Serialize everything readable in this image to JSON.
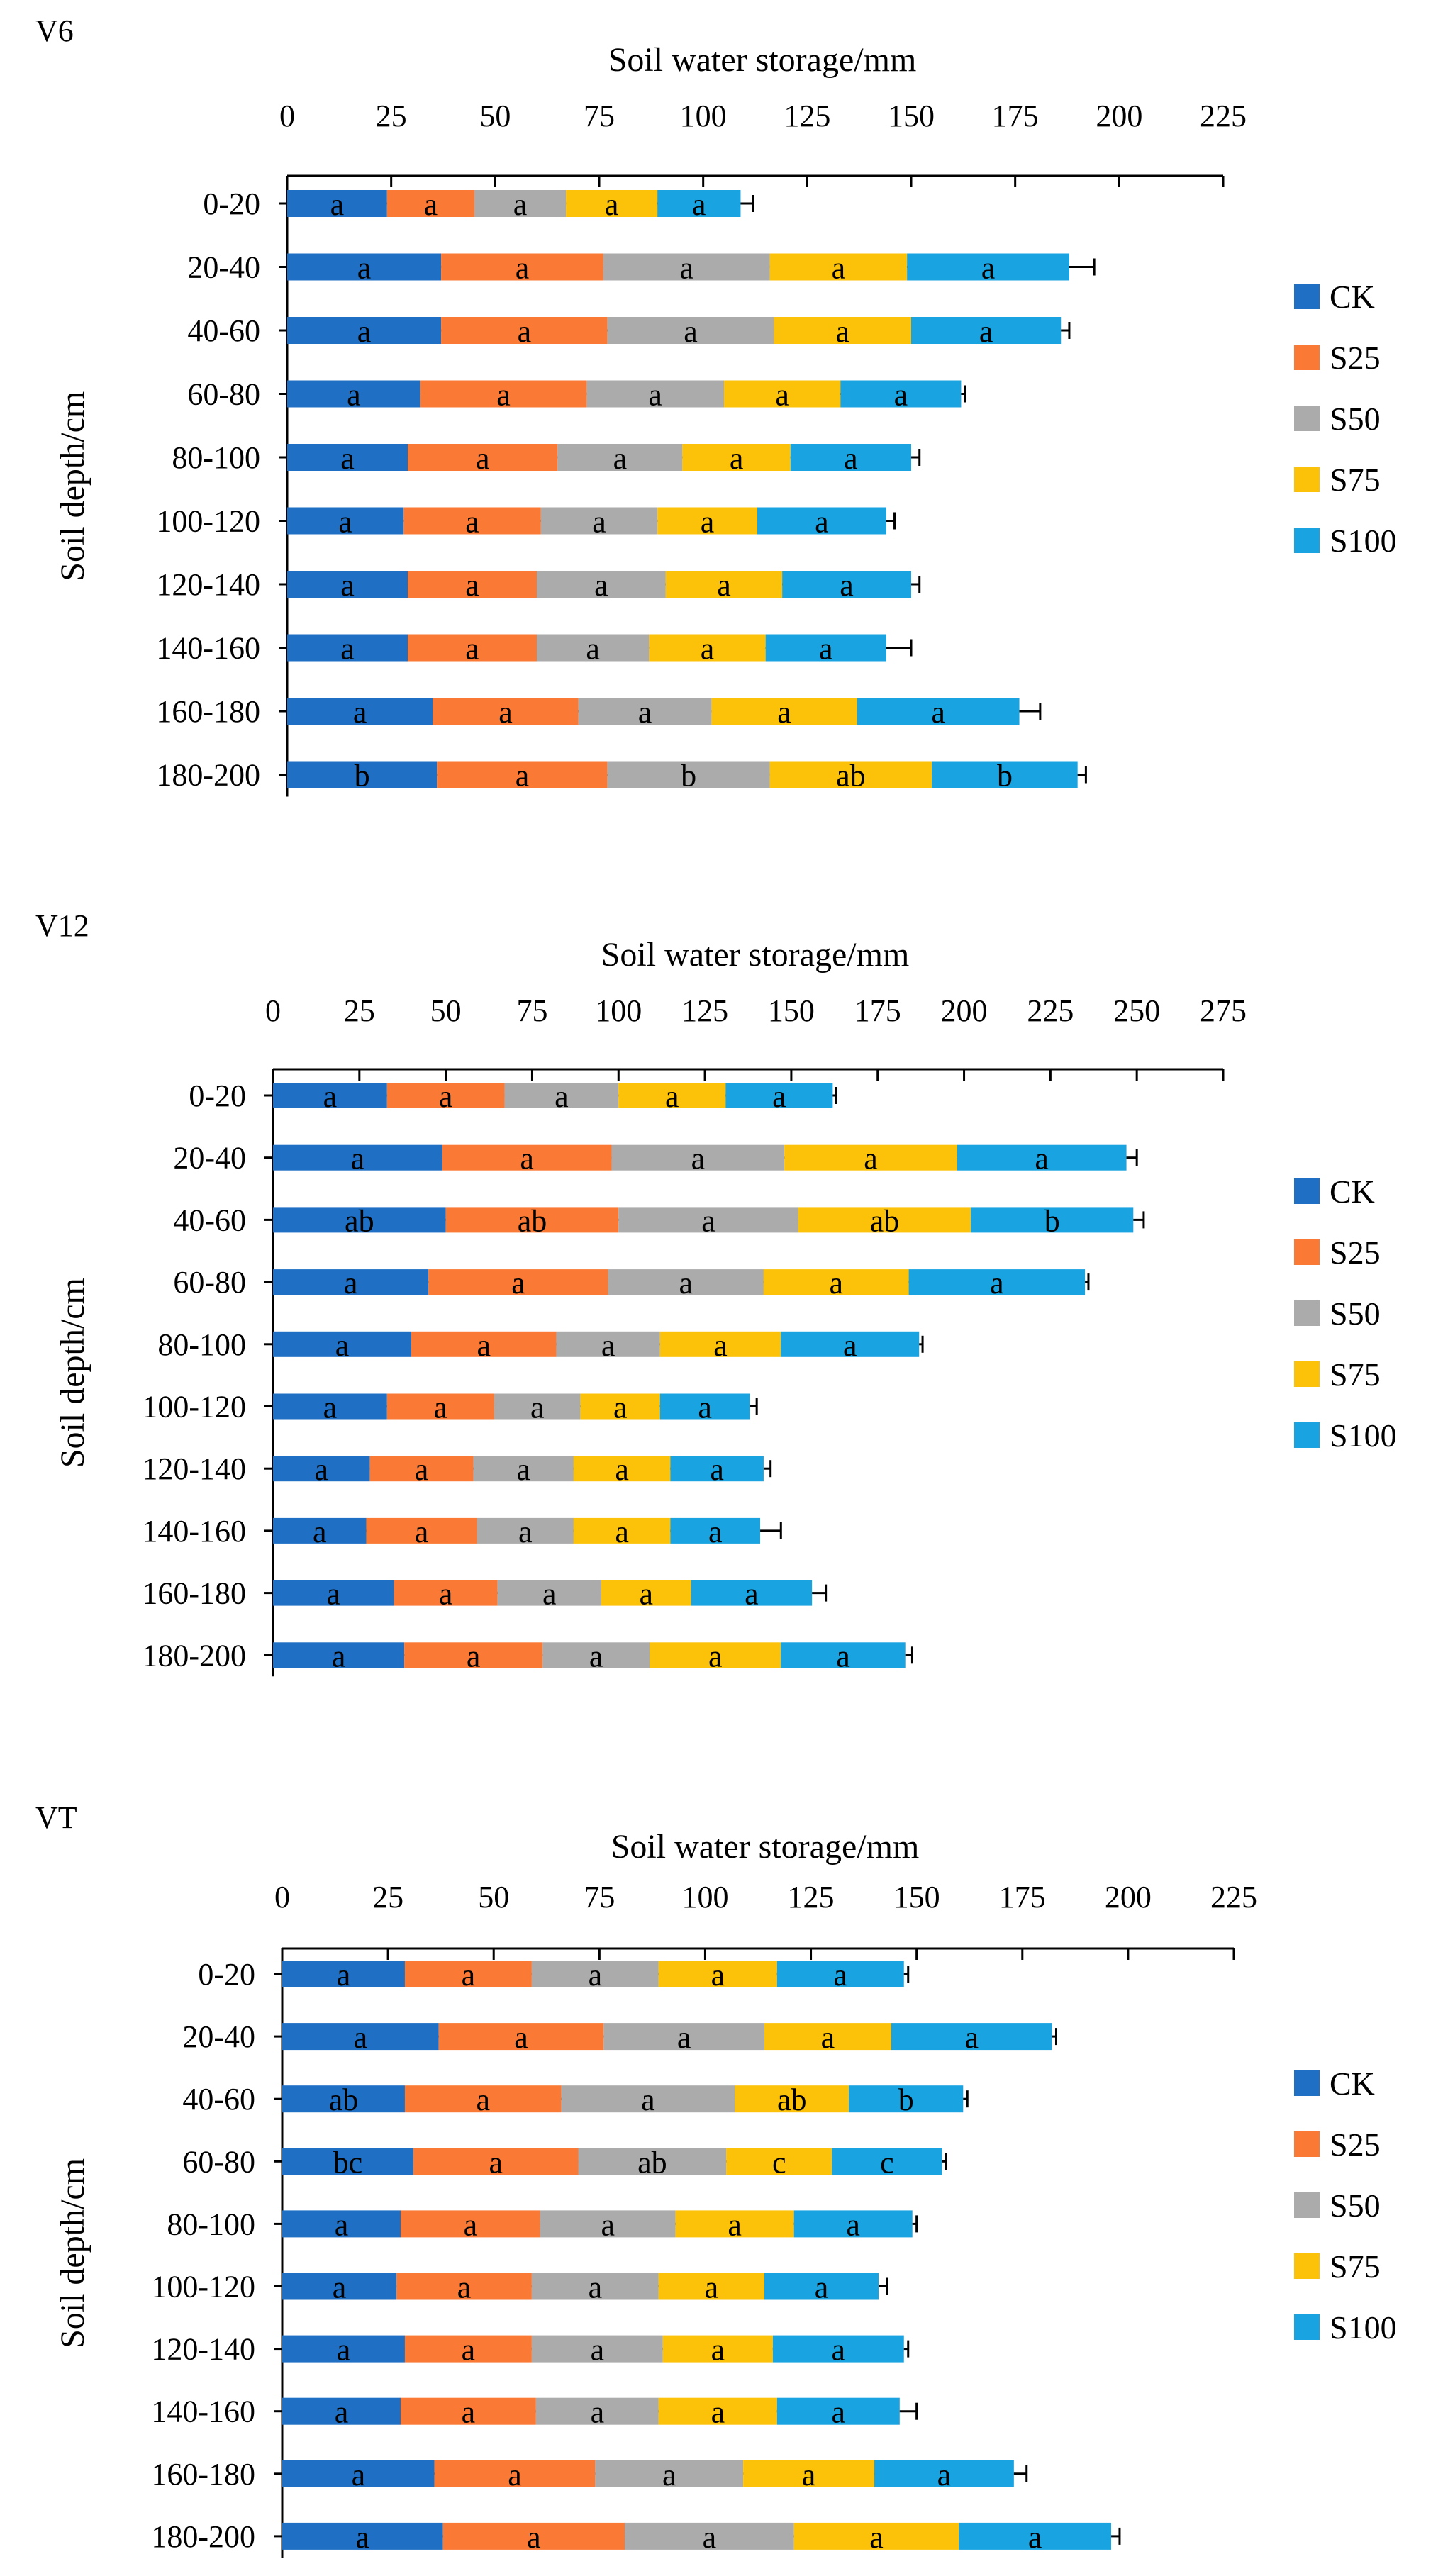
{
  "figure": {
    "depth_axis_label": "Soil depth/cm",
    "storage_axis_label": "Soil water storage/mm",
    "depths": [
      "0-20",
      "20-40",
      "40-60",
      "60-80",
      "80-100",
      "100-120",
      "120-140",
      "140-160",
      "160-180",
      "180-200"
    ],
    "legend": [
      "CK",
      "S25",
      "S50",
      "S75",
      "S100"
    ],
    "colors": {
      "CK": "#1F6FC4",
      "S25": "#FA7A35",
      "S50": "#ABABAB",
      "S75": "#FCC20A",
      "S100": "#1AA3E1"
    }
  },
  "chart_data": [
    {
      "type": "bar",
      "stacked": true,
      "orientation": "horizontal",
      "title": "V6",
      "xlabel": "Soil water storage/mm",
      "ylabel": "Soil depth/cm",
      "xlim": [
        0,
        225
      ],
      "xticks": [
        0,
        25,
        50,
        75,
        100,
        125,
        150,
        175,
        200,
        225
      ],
      "categories": [
        "0-20",
        "20-40",
        "40-60",
        "60-80",
        "80-100",
        "100-120",
        "120-140",
        "140-160",
        "160-180",
        "180-200"
      ],
      "legend_position": "right",
      "series": [
        {
          "name": "CK",
          "values": [
            24,
            37,
            37,
            32,
            29,
            28,
            29,
            29,
            35,
            36
          ],
          "errors": [
            2,
            1,
            2,
            3,
            3,
            4,
            2,
            2,
            3,
            1
          ],
          "labels": [
            "a",
            "a",
            "a",
            "a",
            "a",
            "a",
            "a",
            "a",
            "a",
            "b"
          ]
        },
        {
          "name": "S25",
          "values": [
            21,
            39,
            40,
            40,
            36,
            33,
            31,
            31,
            35,
            41
          ],
          "errors": [
            3,
            2,
            2,
            1,
            3,
            2,
            2,
            2,
            3,
            1
          ],
          "labels": [
            "a",
            "a",
            "a",
            "a",
            "a",
            "a",
            "a",
            "a",
            "a",
            "a"
          ]
        },
        {
          "name": "S50",
          "values": [
            22,
            40,
            40,
            33,
            30,
            28,
            31,
            27,
            32,
            39
          ],
          "errors": [
            2,
            3,
            6,
            5,
            3,
            3,
            1,
            3,
            3,
            2
          ],
          "labels": [
            "a",
            "a",
            "a",
            "a",
            "a",
            "a",
            "a",
            "a",
            "a",
            "b"
          ]
        },
        {
          "name": "S75",
          "values": [
            22,
            33,
            33,
            28,
            26,
            24,
            28,
            28,
            35,
            39
          ],
          "errors": [
            3,
            1,
            3,
            3,
            3,
            4,
            2,
            3,
            2,
            1
          ],
          "labels": [
            "a",
            "a",
            "a",
            "a",
            "a",
            "a",
            "a",
            "a",
            "a",
            "ab"
          ]
        },
        {
          "name": "S100",
          "values": [
            20,
            39,
            36,
            29,
            29,
            31,
            31,
            29,
            39,
            35
          ],
          "errors": [
            3,
            6,
            2,
            1,
            2,
            2,
            2,
            6,
            5,
            2
          ],
          "labels": [
            "a",
            "a",
            "a",
            "a",
            "a",
            "a",
            "a",
            "a",
            "a",
            "b"
          ]
        }
      ]
    },
    {
      "type": "bar",
      "stacked": true,
      "orientation": "horizontal",
      "title": "V12",
      "xlabel": "Soil water storage/mm",
      "ylabel": "Soil depth/cm",
      "xlim": [
        0,
        275
      ],
      "xticks": [
        0,
        25,
        50,
        75,
        100,
        125,
        150,
        175,
        200,
        225,
        250,
        275
      ],
      "categories": [
        "0-20",
        "20-40",
        "40-60",
        "60-80",
        "80-100",
        "100-120",
        "120-140",
        "140-160",
        "160-180",
        "180-200"
      ],
      "legend_position": "right",
      "series": [
        {
          "name": "CK",
          "values": [
            33,
            49,
            50,
            45,
            40,
            33,
            28,
            27,
            35,
            38
          ],
          "errors": [
            2,
            1,
            2,
            2,
            3,
            8,
            5,
            3,
            6,
            3
          ],
          "labels": [
            "a",
            "a",
            "ab",
            "a",
            "a",
            "a",
            "a",
            "a",
            "a",
            "a"
          ]
        },
        {
          "name": "S25",
          "values": [
            34,
            49,
            50,
            52,
            42,
            31,
            30,
            32,
            30,
            40
          ],
          "errors": [
            4,
            1,
            2,
            5,
            10,
            4,
            3,
            3,
            4,
            2
          ],
          "labels": [
            "a",
            "a",
            "ab",
            "a",
            "a",
            "a",
            "a",
            "a",
            "a",
            "a"
          ]
        },
        {
          "name": "S50",
          "values": [
            33,
            50,
            52,
            45,
            30,
            25,
            29,
            28,
            30,
            31
          ],
          "errors": [
            2,
            1,
            3,
            4,
            2,
            3,
            2,
            2,
            2,
            2
          ],
          "labels": [
            "a",
            "a",
            "a",
            "a",
            "a",
            "a",
            "a",
            "a",
            "a",
            "a"
          ]
        },
        {
          "name": "S75",
          "values": [
            31,
            50,
            50,
            42,
            35,
            23,
            28,
            28,
            26,
            38
          ],
          "errors": [
            3,
            1,
            3,
            3,
            4,
            5,
            5,
            5,
            2,
            2
          ],
          "labels": [
            "a",
            "a",
            "ab",
            "a",
            "a",
            "a",
            "a",
            "a",
            "a",
            "a"
          ]
        },
        {
          "name": "S100",
          "values": [
            31,
            49,
            47,
            51,
            40,
            26,
            27,
            26,
            35,
            36
          ],
          "errors": [
            1,
            3,
            3,
            1,
            1,
            2,
            2,
            6,
            4,
            2
          ],
          "labels": [
            "a",
            "a",
            "b",
            "a",
            "a",
            "a",
            "a",
            "a",
            "a",
            "a"
          ]
        }
      ]
    },
    {
      "type": "bar",
      "stacked": true,
      "orientation": "horizontal",
      "title": "VT",
      "xlabel": "Soil water storage/mm",
      "ylabel": "Soil depth/cm",
      "xlim": [
        0,
        225
      ],
      "xticks": [
        0,
        25,
        50,
        75,
        100,
        125,
        150,
        175,
        200,
        225
      ],
      "categories": [
        "0-20",
        "20-40",
        "40-60",
        "60-80",
        "80-100",
        "100-120",
        "120-140",
        "140-160",
        "160-180",
        "180-200"
      ],
      "legend_position": "right",
      "series": [
        {
          "name": "CK",
          "values": [
            29,
            37,
            29,
            31,
            28,
            27,
            29,
            28,
            36,
            38
          ],
          "errors": [
            2,
            2,
            4,
            4,
            2,
            4,
            1,
            2,
            5,
            3
          ],
          "labels": [
            "a",
            "a",
            "ab",
            "bc",
            "a",
            "a",
            "a",
            "a",
            "a",
            "a"
          ]
        },
        {
          "name": "S25",
          "values": [
            30,
            39,
            37,
            39,
            33,
            32,
            30,
            32,
            38,
            43
          ],
          "errors": [
            2,
            3,
            1,
            1,
            1,
            2,
            1,
            5,
            4,
            4
          ],
          "labels": [
            "a",
            "a",
            "a",
            "a",
            "a",
            "a",
            "a",
            "a",
            "a",
            "a"
          ]
        },
        {
          "name": "S50",
          "values": [
            30,
            38,
            41,
            35,
            32,
            30,
            31,
            29,
            35,
            40
          ],
          "errors": [
            2,
            3,
            4,
            2,
            2,
            2,
            1,
            3,
            5,
            2
          ],
          "labels": [
            "a",
            "a",
            "a",
            "ab",
            "a",
            "a",
            "a",
            "a",
            "a",
            "a"
          ]
        },
        {
          "name": "S75",
          "values": [
            28,
            30,
            27,
            25,
            28,
            25,
            26,
            28,
            31,
            39
          ],
          "errors": [
            2,
            5,
            2,
            3,
            5,
            3,
            4,
            4,
            1,
            1
          ],
          "labels": [
            "a",
            "a",
            "ab",
            "c",
            "a",
            "a",
            "a",
            "a",
            "a",
            "a"
          ]
        },
        {
          "name": "S100",
          "values": [
            30,
            38,
            27,
            26,
            28,
            27,
            31,
            29,
            33,
            36
          ],
          "errors": [
            1,
            1,
            1,
            1,
            1,
            2,
            1,
            4,
            3,
            2
          ],
          "labels": [
            "a",
            "a",
            "b",
            "c",
            "a",
            "a",
            "a",
            "a",
            "a",
            "a"
          ]
        }
      ]
    }
  ]
}
